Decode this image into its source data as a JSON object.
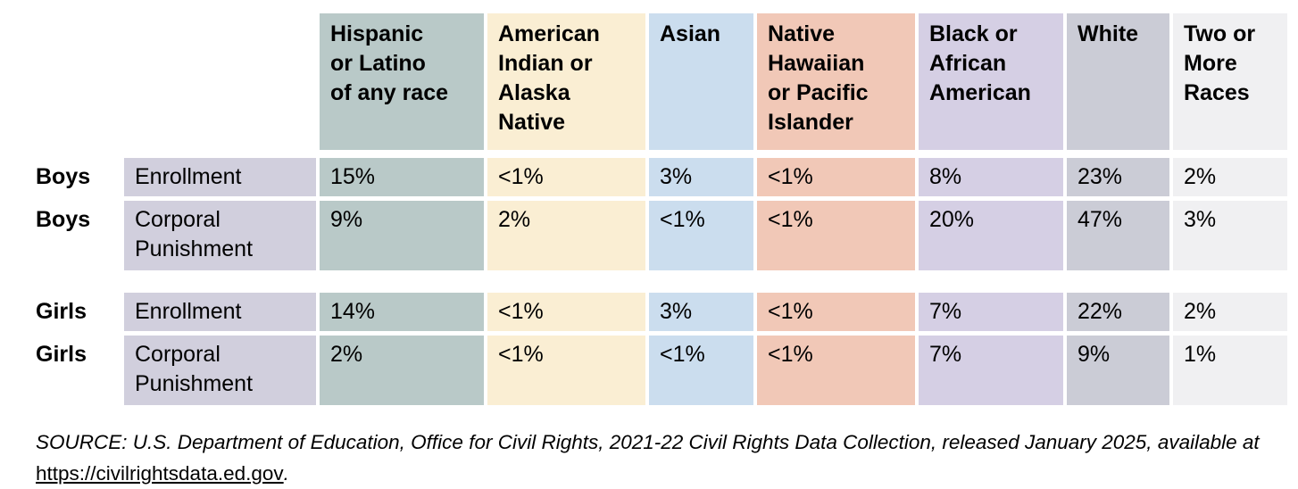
{
  "chart_data": {
    "type": "table",
    "title": "",
    "columns": [
      "Hispanic or Latino of any race",
      "American Indian or Alaska Native",
      "Asian",
      "Native Hawaiian or Pacific Islander",
      "Black or African American",
      "White",
      "Two or More Races"
    ],
    "rows": [
      {
        "group": "Boys",
        "measure": "Enrollment",
        "values": [
          "15%",
          "<1%",
          "3%",
          "<1%",
          "8%",
          "23%",
          "2%"
        ]
      },
      {
        "group": "Boys",
        "measure": "Corporal Punishment",
        "values": [
          "9%",
          "2%",
          "<1%",
          "<1%",
          "20%",
          "47%",
          "3%"
        ]
      },
      {
        "group": "Girls",
        "measure": "Enrollment",
        "values": [
          "14%",
          "<1%",
          "3%",
          "<1%",
          "7%",
          "22%",
          "2%"
        ]
      },
      {
        "group": "Girls",
        "measure": "Corporal Punishment",
        "values": [
          "2%",
          "<1%",
          "<1%",
          "<1%",
          "7%",
          "9%",
          "1%"
        ]
      }
    ],
    "source": "SOURCE: U.S. Department of Education, Office for Civil Rights, 2021-22 Civil Rights Data Collection, released January 2025, available at https://civilrightsdata.ed.gov."
  },
  "table": {
    "columns": [
      {
        "label": "Hispanic\nor Latino\nof any race",
        "color": "#b9c9c8"
      },
      {
        "label": "American\nIndian or\nAlaska\nNative",
        "color": "#faeed3"
      },
      {
        "label": "Asian",
        "color": "#cbddee"
      },
      {
        "label": "Native\nHawaiian\nor Pacific\nIslander",
        "color": "#f1c8b7"
      },
      {
        "label": "Black or\nAfrican\nAmerican",
        "color": "#d5cfe4"
      },
      {
        "label": "White",
        "color": "#cbccd6"
      },
      {
        "label": "Two or\nMore\nRaces",
        "color": "#f0f0f2"
      }
    ],
    "row_label_color": "#d1cfdd",
    "rows": [
      {
        "gender": "Boys",
        "label": "Enrollment",
        "values": [
          "15%",
          "<1%",
          "3%",
          "<1%",
          "8%",
          "23%",
          "2%"
        ]
      },
      {
        "gender": "Boys",
        "label": "Corporal\nPunishment",
        "values": [
          "9%",
          "2%",
          "<1%",
          "<1%",
          "20%",
          "47%",
          "3%"
        ]
      },
      {
        "gender": "Girls",
        "label": "Enrollment",
        "values": [
          "14%",
          "<1%",
          "3%",
          "<1%",
          "7%",
          "22%",
          "2%"
        ]
      },
      {
        "gender": "Girls",
        "label": "Corporal\nPunishment",
        "values": [
          "2%",
          "<1%",
          "<1%",
          "<1%",
          "7%",
          "9%",
          "1%"
        ]
      }
    ]
  },
  "source": {
    "text_before_link": "SOURCE: U.S. Department of Education, Office for Civil Rights, 2021-22 Civil Rights Data Collection, released January 2025, available at ",
    "link": "https://civilrightsdata.ed.gov",
    "text_after_link": "."
  }
}
